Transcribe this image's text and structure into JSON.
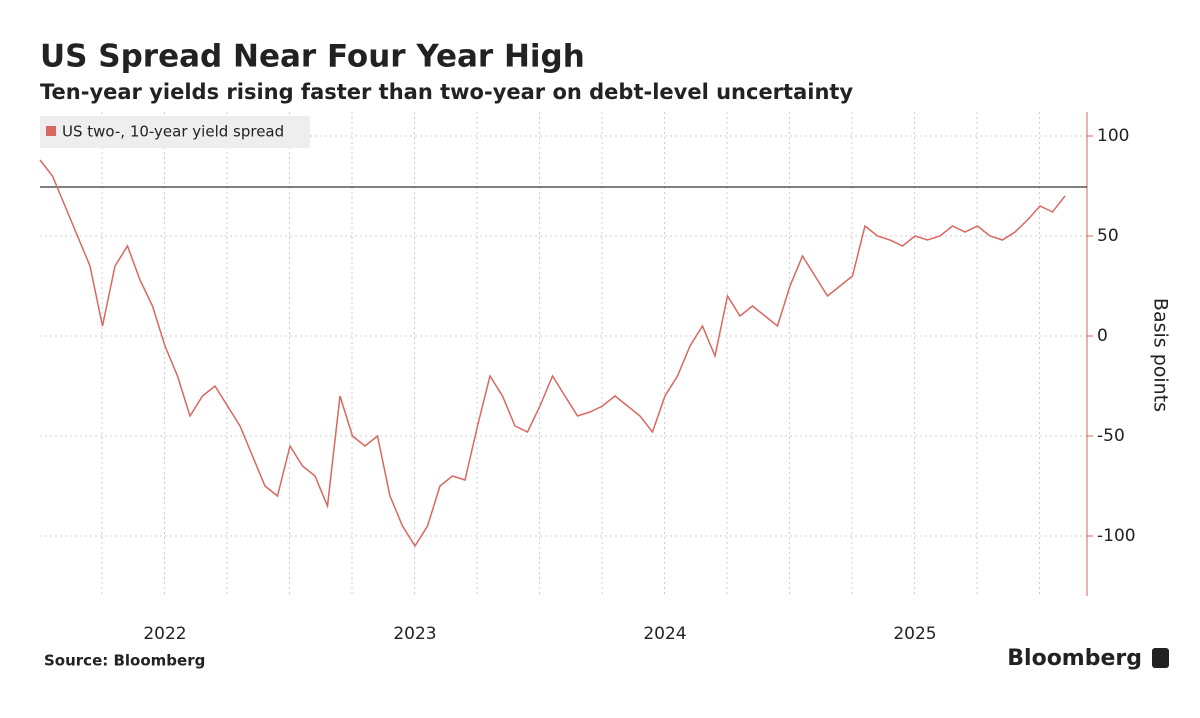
{
  "chart_data": {
    "type": "line",
    "title": "US Spread Near Four Year High",
    "subtitle": "Ten-year yields rising faster than two-year on debt-level uncertainty",
    "y_axis_label": "Basis points",
    "source": "Source: Bloomberg",
    "logo": "Bloomberg",
    "categories": [
      null,
      null,
      null,
      null,
      null,
      null,
      null,
      null,
      null,
      null,
      "2022",
      null,
      null,
      null,
      null,
      null,
      null,
      null,
      null,
      null,
      null,
      null,
      null,
      null,
      null,
      null,
      null,
      null,
      null,
      null,
      "2023",
      null,
      null,
      null,
      null,
      null,
      null,
      null,
      null,
      null,
      null,
      null,
      null,
      null,
      null,
      null,
      null,
      null,
      null,
      null,
      "2024",
      null,
      null,
      null,
      null,
      null,
      null,
      null,
      null,
      null,
      null,
      null,
      null,
      null,
      null,
      null,
      null,
      null,
      null,
      null,
      "2025",
      null,
      null,
      null,
      null,
      null,
      null,
      null,
      null,
      null,
      null,
      null,
      null
    ],
    "series": [
      {
        "name": "US two-, 10-year yield spread",
        "color": "#d9685f",
        "values": [
          88,
          80,
          65,
          50,
          35,
          5,
          35,
          45,
          28,
          15,
          -5,
          -20,
          -40,
          -30,
          -25,
          -35,
          -45,
          -60,
          -75,
          -80,
          -55,
          -65,
          -70,
          -85,
          -30,
          -50,
          -55,
          -50,
          -80,
          -95,
          -105,
          -95,
          -75,
          -70,
          -72,
          -45,
          -20,
          -30,
          -45,
          -48,
          -35,
          -20,
          -30,
          -40,
          -38,
          -35,
          -30,
          -35,
          -40,
          -48,
          -30,
          -20,
          -5,
          5,
          -10,
          20,
          10,
          15,
          10,
          5,
          25,
          40,
          30,
          20,
          25,
          30,
          55,
          50,
          48,
          45,
          50,
          48,
          50,
          55,
          52,
          55,
          50,
          48,
          52,
          58,
          65,
          62,
          70
        ]
      }
    ],
    "reference_line": 74.5,
    "ylim": [
      -130,
      112
    ],
    "yticks": [
      -100,
      -50,
      0,
      50,
      100
    ],
    "grid": true,
    "legend": "top-left"
  }
}
